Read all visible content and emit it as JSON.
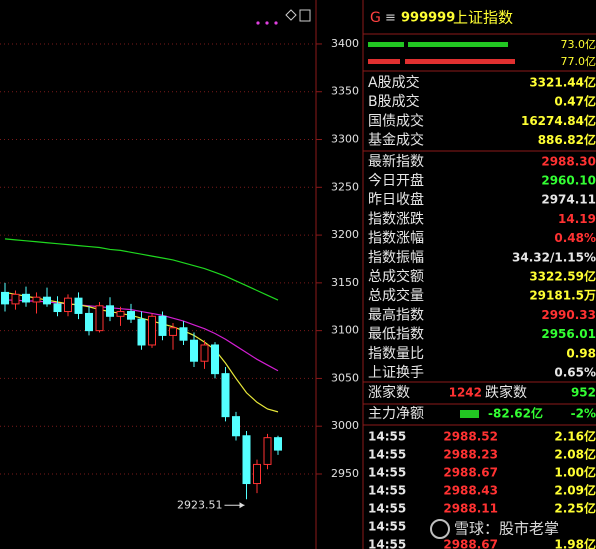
{
  "chart_data": {
    "type": "candlestick",
    "ylim": [
      2871.5,
      3446
    ],
    "yticks": [
      2950,
      3000,
      3050,
      3100,
      3150,
      3200,
      3250,
      3300,
      3350,
      3400
    ],
    "grid": true,
    "up_color": "#ff3232",
    "down_color": "#54ffff",
    "open": [
      3140,
      3128,
      3138,
      3130,
      3135,
      3128,
      3120,
      3134,
      3118,
      3100,
      3126,
      3115,
      3120,
      3112,
      3085,
      3115,
      3095,
      3103,
      3090,
      3068,
      3085,
      3055,
      3010,
      2990,
      2940,
      2960,
      2988
    ],
    "high": [
      3150,
      3142,
      3146,
      3140,
      3145,
      3136,
      3138,
      3140,
      3126,
      3130,
      3135,
      3125,
      3128,
      3120,
      3118,
      3120,
      3108,
      3110,
      3098,
      3090,
      3088,
      3062,
      3015,
      2995,
      2965,
      2992,
      2990
    ],
    "low": [
      3120,
      3122,
      3125,
      3118,
      3125,
      3115,
      3115,
      3112,
      3095,
      3098,
      3110,
      3105,
      3108,
      3080,
      3082,
      3090,
      3080,
      3085,
      3062,
      3060,
      3050,
      3005,
      2985,
      2923.51,
      2930,
      2955,
      2970
    ],
    "close": [
      3128,
      3138,
      3130,
      3135,
      3128,
      3120,
      3134,
      3118,
      3100,
      3126,
      3115,
      3120,
      3112,
      3085,
      3115,
      3095,
      3103,
      3090,
      3068,
      3085,
      3055,
      3010,
      2990,
      2940,
      2960,
      2988,
      2975
    ],
    "series": [
      {
        "color": "#1fd81f",
        "values": [
          3196,
          3195,
          3194,
          3193,
          3192,
          3191,
          3190,
          3189,
          3188,
          3187,
          3185,
          3184,
          3182,
          3180,
          3178,
          3176,
          3174,
          3171,
          3168,
          3165,
          3161,
          3157,
          3152,
          3147,
          3142,
          3137,
          3132
        ]
      },
      {
        "color": "#d21ed2",
        "values": [
          3132,
          3132,
          3131,
          3131,
          3130,
          3129,
          3128,
          3127,
          3126,
          3125,
          3124,
          3123,
          3122,
          3120,
          3118,
          3116,
          3113,
          3110,
          3106,
          3102,
          3097,
          3091,
          3084,
          3077,
          3070,
          3064,
          3058
        ]
      },
      {
        "color": "#e8e83a",
        "values": [
          3140,
          3138,
          3136,
          3134,
          3132,
          3130,
          3128,
          3127,
          3125,
          3122,
          3120,
          3118,
          3116,
          3113,
          3110,
          3107,
          3104,
          3100,
          3095,
          3088,
          3080,
          3066,
          3050,
          3035,
          3025,
          3018,
          3015
        ]
      }
    ],
    "annotation": "2923.51"
  },
  "quote_panel": {
    "header": {
      "icon": "G",
      "menu": "≡",
      "code": "999999",
      "name": "上证指数"
    },
    "bars": [
      "73.0亿",
      "77.0亿"
    ],
    "rows": [
      {
        "label": "A股成交",
        "value": "3321.44亿",
        "color": "#ffff33"
      },
      {
        "label": "B股成交",
        "value": "0.47亿",
        "color": "#ffff33"
      },
      {
        "label": "国债成交",
        "value": "16274.84亿",
        "color": "#ffff33"
      },
      {
        "label": "基金成交",
        "value": "886.82亿",
        "color": "#ffff33"
      },
      {
        "label": "最新指数",
        "value": "2988.30",
        "color": "#ff3232"
      },
      {
        "label": "今日开盘",
        "value": "2960.10",
        "color": "#33ff33"
      },
      {
        "label": "昨日收盘",
        "value": "2974.11",
        "color": "#e6e6e6"
      },
      {
        "label": "指数涨跌",
        "value": "14.19",
        "color": "#ff3232"
      },
      {
        "label": "指数涨幅",
        "value": "0.48%",
        "color": "#ff3232"
      },
      {
        "label": "指数振幅",
        "value": "34.32/1.15%",
        "color": "#e6e6e6"
      },
      {
        "label": "总成交额",
        "value": "3322.59亿",
        "color": "#ffff33"
      },
      {
        "label": "总成交量",
        "value": "29181.5万",
        "color": "#ffff33"
      },
      {
        "label": "最高指数",
        "value": "2990.33",
        "color": "#ff3232"
      },
      {
        "label": "最低指数",
        "value": "2956.01",
        "color": "#33ff33"
      },
      {
        "label": "指数量比",
        "value": "0.98",
        "color": "#ffff33"
      },
      {
        "label": "上证换手",
        "value": "0.65%",
        "color": "#e6e6e6"
      }
    ],
    "breadth": {
      "up_label": "涨家数",
      "up": "1242",
      "down_label": "跌家数",
      "down": "952"
    },
    "flow": {
      "label": "主力净额",
      "amount": "-82.62亿",
      "pct": "-2%"
    },
    "ticks": [
      [
        "14:55",
        "2988.52",
        "2.16亿"
      ],
      [
        "14:55",
        "2988.23",
        "2.08亿"
      ],
      [
        "14:55",
        "2988.67",
        "1.00亿"
      ],
      [
        "14:55",
        "2988.43",
        "2.09亿"
      ],
      [
        "14:55",
        "2988.11",
        "2.25亿"
      ],
      [
        "14:55"
      ],
      [
        "14:55",
        "2988.67",
        "1.98亿"
      ]
    ],
    "watermark": "雪球：股市老掌"
  }
}
